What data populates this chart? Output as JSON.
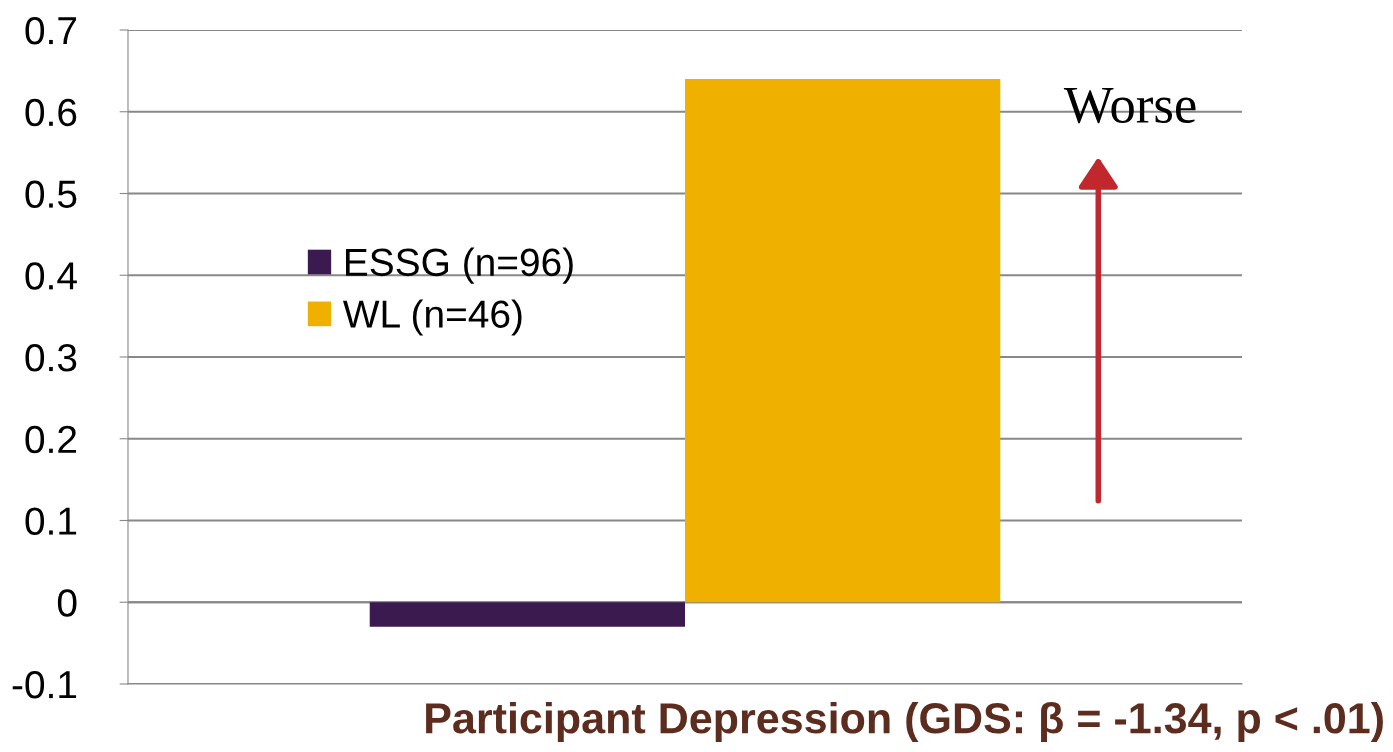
{
  "chart_data": {
    "type": "bar",
    "xlabel": "Participant Depression (GDS: β = -1.34, p < .01)",
    "categories": [
      null
    ],
    "series": [
      {
        "name": "ESSG (n=96)",
        "color": "#3a1a4f",
        "values": [
          -0.03
        ]
      },
      {
        "name": "WL (n=46)",
        "color": "#f0b000",
        "values": [
          0.64
        ]
      }
    ],
    "ylim": [
      -0.1,
      0.7
    ],
    "yticks": [
      {
        "value": -0.1,
        "label": "-0.1"
      },
      0,
      0.1,
      0.2,
      0.3,
      0.4,
      0.5,
      0.6,
      0.7
    ],
    "grid": "y",
    "legend": "left",
    "annotations": [
      "Worse"
    ]
  }
}
